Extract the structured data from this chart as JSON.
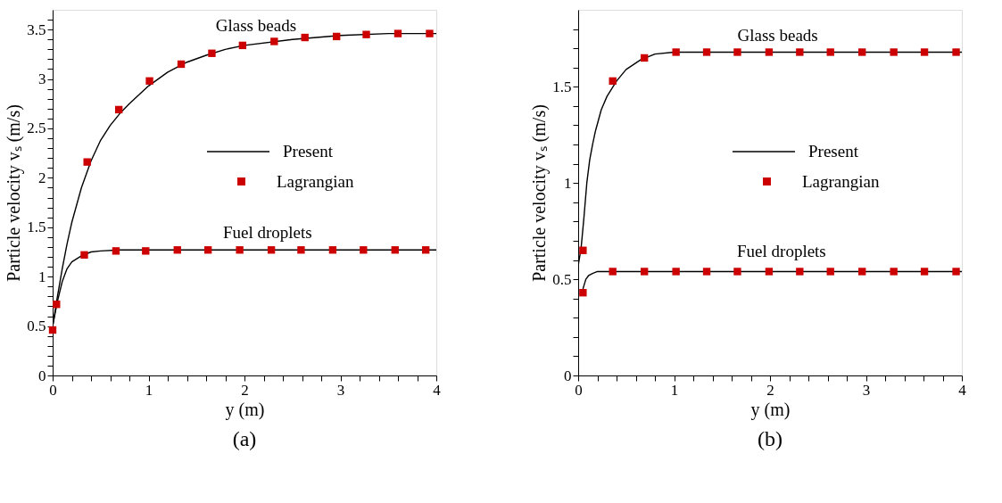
{
  "chart_data": [
    {
      "type": "line",
      "title": "(a)",
      "xlabel": "y (m)",
      "ylabel": "Particle velocity vₛ (m/s)",
      "xlim": [
        0,
        4
      ],
      "ylim": [
        0,
        3.7
      ],
      "xticks": [
        0,
        {
          "value": 0.2,
          "label": null
        },
        {
          "value": 0.4,
          "label": null
        },
        {
          "value": 0.6,
          "label": null
        },
        {
          "value": 0.8,
          "label": null
        },
        1,
        {
          "value": 1.2,
          "label": null
        },
        {
          "value": 1.4,
          "label": null
        },
        {
          "value": 1.6,
          "label": null
        },
        {
          "value": 1.8,
          "label": null
        },
        2,
        {
          "value": 2.2,
          "label": null
        },
        {
          "value": 2.4,
          "label": null
        },
        {
          "value": 2.6,
          "label": null
        },
        {
          "value": 2.8,
          "label": null
        },
        3,
        {
          "value": 3.2,
          "label": null
        },
        {
          "value": 3.4,
          "label": null
        },
        {
          "value": 3.6,
          "label": null
        },
        {
          "value": 3.8,
          "label": null
        },
        4
      ],
      "yticks": [
        0,
        {
          "value": 0.1,
          "label": null
        },
        {
          "value": 0.2,
          "label": null
        },
        {
          "value": 0.3,
          "label": null
        },
        {
          "value": 0.4,
          "label": null
        },
        0.5,
        {
          "value": 0.6,
          "label": null
        },
        {
          "value": 0.7,
          "label": null
        },
        {
          "value": 0.8,
          "label": null
        },
        {
          "value": 0.9,
          "label": null
        },
        1,
        {
          "value": 1.1,
          "label": null
        },
        {
          "value": 1.2,
          "label": null
        },
        {
          "value": 1.3,
          "label": null
        },
        {
          "value": 1.4,
          "label": null
        },
        1.5,
        {
          "value": 1.6,
          "label": null
        },
        {
          "value": 1.7,
          "label": null
        },
        {
          "value": 1.8,
          "label": null
        },
        {
          "value": 1.9,
          "label": null
        },
        2,
        {
          "value": 2.1,
          "label": null
        },
        {
          "value": 2.2,
          "label": null
        },
        {
          "value": 2.3,
          "label": null
        },
        {
          "value": 2.4,
          "label": null
        },
        2.5,
        {
          "value": 2.6,
          "label": null
        },
        {
          "value": 2.7,
          "label": null
        },
        {
          "value": 2.8,
          "label": null
        },
        {
          "value": 2.9,
          "label": null
        },
        3,
        {
          "value": 3.1,
          "label": null
        },
        {
          "value": 3.2,
          "label": null
        },
        {
          "value": 3.3,
          "label": null
        },
        {
          "value": 3.4,
          "label": null
        },
        3.5,
        {
          "value": 3.6,
          "label": null
        }
      ],
      "grid": false,
      "legend": "right",
      "line_style": "solid",
      "annotations": [
        "Glass beads",
        "Fuel droplets"
      ],
      "series": [
        {
          "name": "Present",
          "color": "#000000",
          "x": [
            0,
            0.05,
            0.1,
            0.15,
            0.2,
            0.3,
            0.4,
            0.5,
            0.6,
            0.7,
            0.8,
            1.0,
            1.2,
            1.4,
            1.6,
            1.8,
            2.0,
            2.5,
            3.0,
            3.5,
            4.0
          ],
          "values": [
            0.5,
            0.8,
            1.08,
            1.33,
            1.55,
            1.9,
            2.17,
            2.38,
            2.53,
            2.65,
            2.75,
            2.93,
            3.07,
            3.17,
            3.24,
            3.3,
            3.34,
            3.4,
            3.44,
            3.46,
            3.46
          ]
        },
        {
          "name": "Present",
          "color": "#000000",
          "x": [
            0,
            0.05,
            0.1,
            0.15,
            0.2,
            0.3,
            0.4,
            0.5,
            0.7,
            1.0,
            2.0,
            3.0,
            4.0
          ],
          "values": [
            0.5,
            0.75,
            0.95,
            1.08,
            1.15,
            1.21,
            1.25,
            1.26,
            1.27,
            1.27,
            1.27,
            1.27,
            1.27
          ]
        },
        {
          "name": "Lagrangian",
          "type": "scatter",
          "marker": "square",
          "color": "#cc0000",
          "x": [
            0.04,
            0.36,
            0.69,
            1.01,
            1.34,
            1.66,
            1.98,
            2.31,
            2.63,
            2.96,
            3.27,
            3.6,
            3.93
          ],
          "values": [
            0.72,
            2.16,
            2.69,
            2.98,
            3.15,
            3.26,
            3.34,
            3.38,
            3.42,
            3.43,
            3.45,
            3.46,
            3.46
          ]
        },
        {
          "name": "Lagrangian",
          "type": "scatter",
          "marker": "square",
          "color": "#cc0000",
          "x": [
            0.0,
            0.33,
            0.66,
            0.97,
            1.3,
            1.62,
            1.95,
            2.28,
            2.59,
            2.92,
            3.24,
            3.57,
            3.89
          ],
          "values": [
            0.46,
            1.22,
            1.26,
            1.26,
            1.27,
            1.27,
            1.27,
            1.27,
            1.27,
            1.27,
            1.27,
            1.27,
            1.27
          ]
        }
      ]
    },
    {
      "type": "line",
      "title": "(b)",
      "xlabel": "y (m)",
      "ylabel": "Particle velocity vₛ (m/s)",
      "xlim": [
        0,
        4
      ],
      "ylim": [
        0,
        1.9
      ],
      "xticks": [
        0,
        {
          "value": 0.2,
          "label": null
        },
        {
          "value": 0.4,
          "label": null
        },
        {
          "value": 0.6,
          "label": null
        },
        {
          "value": 0.8,
          "label": null
        },
        1,
        {
          "value": 1.2,
          "label": null
        },
        {
          "value": 1.4,
          "label": null
        },
        {
          "value": 1.6,
          "label": null
        },
        {
          "value": 1.8,
          "label": null
        },
        2,
        {
          "value": 2.2,
          "label": null
        },
        {
          "value": 2.4,
          "label": null
        },
        {
          "value": 2.6,
          "label": null
        },
        {
          "value": 2.8,
          "label": null
        },
        3,
        {
          "value": 3.2,
          "label": null
        },
        {
          "value": 3.4,
          "label": null
        },
        {
          "value": 3.6,
          "label": null
        },
        {
          "value": 3.8,
          "label": null
        },
        4
      ],
      "yticks": [
        0,
        {
          "value": 0.1,
          "label": null
        },
        {
          "value": 0.2,
          "label": null
        },
        {
          "value": 0.3,
          "label": null
        },
        {
          "value": 0.4,
          "label": null
        },
        0.5,
        {
          "value": 0.6,
          "label": null
        },
        {
          "value": 0.7,
          "label": null
        },
        {
          "value": 0.8,
          "label": null
        },
        {
          "value": 0.9,
          "label": null
        },
        1,
        {
          "value": 1.1,
          "label": null
        },
        {
          "value": 1.2,
          "label": null
        },
        {
          "value": 1.3,
          "label": null
        },
        {
          "value": 1.4,
          "label": null
        },
        1.5,
        {
          "value": 1.6,
          "label": null
        },
        {
          "value": 1.7,
          "label": null
        },
        {
          "value": 1.8,
          "label": null
        }
      ],
      "grid": false,
      "legend": "right",
      "line_style": "solid",
      "annotations": [
        "Glass beads",
        "Fuel droplets"
      ],
      "series": [
        {
          "name": "Present",
          "color": "#000000",
          "x": [
            0,
            0.03,
            0.06,
            0.09,
            0.12,
            0.15,
            0.18,
            0.24,
            0.3,
            0.4,
            0.5,
            0.65,
            0.8,
            1.0,
            1.3,
            2.0,
            3.0,
            4.0
          ],
          "values": [
            0.57,
            0.66,
            0.82,
            1.0,
            1.12,
            1.2,
            1.27,
            1.38,
            1.45,
            1.53,
            1.59,
            1.64,
            1.67,
            1.68,
            1.68,
            1.68,
            1.68,
            1.68
          ]
        },
        {
          "name": "Present",
          "color": "#000000",
          "x": [
            0.03,
            0.05,
            0.08,
            0.11,
            0.15,
            0.2,
            0.25,
            0.4,
            1.0,
            2.0,
            3.0,
            4.0
          ],
          "values": [
            0.42,
            0.45,
            0.5,
            0.52,
            0.53,
            0.54,
            0.54,
            0.54,
            0.54,
            0.54,
            0.54,
            0.54
          ]
        },
        {
          "name": "Lagrangian",
          "type": "scatter",
          "marker": "square",
          "color": "#cc0000",
          "x": [
            0.05,
            0.36,
            0.69,
            1.02,
            1.34,
            1.66,
            1.99,
            2.31,
            2.63,
            2.96,
            3.29,
            3.61,
            3.94
          ],
          "values": [
            0.65,
            1.53,
            1.65,
            1.68,
            1.68,
            1.68,
            1.68,
            1.68,
            1.68,
            1.68,
            1.68,
            1.68,
            1.68
          ]
        },
        {
          "name": "Lagrangian",
          "type": "scatter",
          "marker": "square",
          "color": "#cc0000",
          "x": [
            0.05,
            0.36,
            0.69,
            1.02,
            1.34,
            1.66,
            1.99,
            2.31,
            2.63,
            2.96,
            3.29,
            3.61,
            3.94
          ],
          "values": [
            0.43,
            0.54,
            0.54,
            0.54,
            0.54,
            0.54,
            0.54,
            0.54,
            0.54,
            0.54,
            0.54,
            0.54,
            0.54
          ]
        }
      ]
    }
  ]
}
